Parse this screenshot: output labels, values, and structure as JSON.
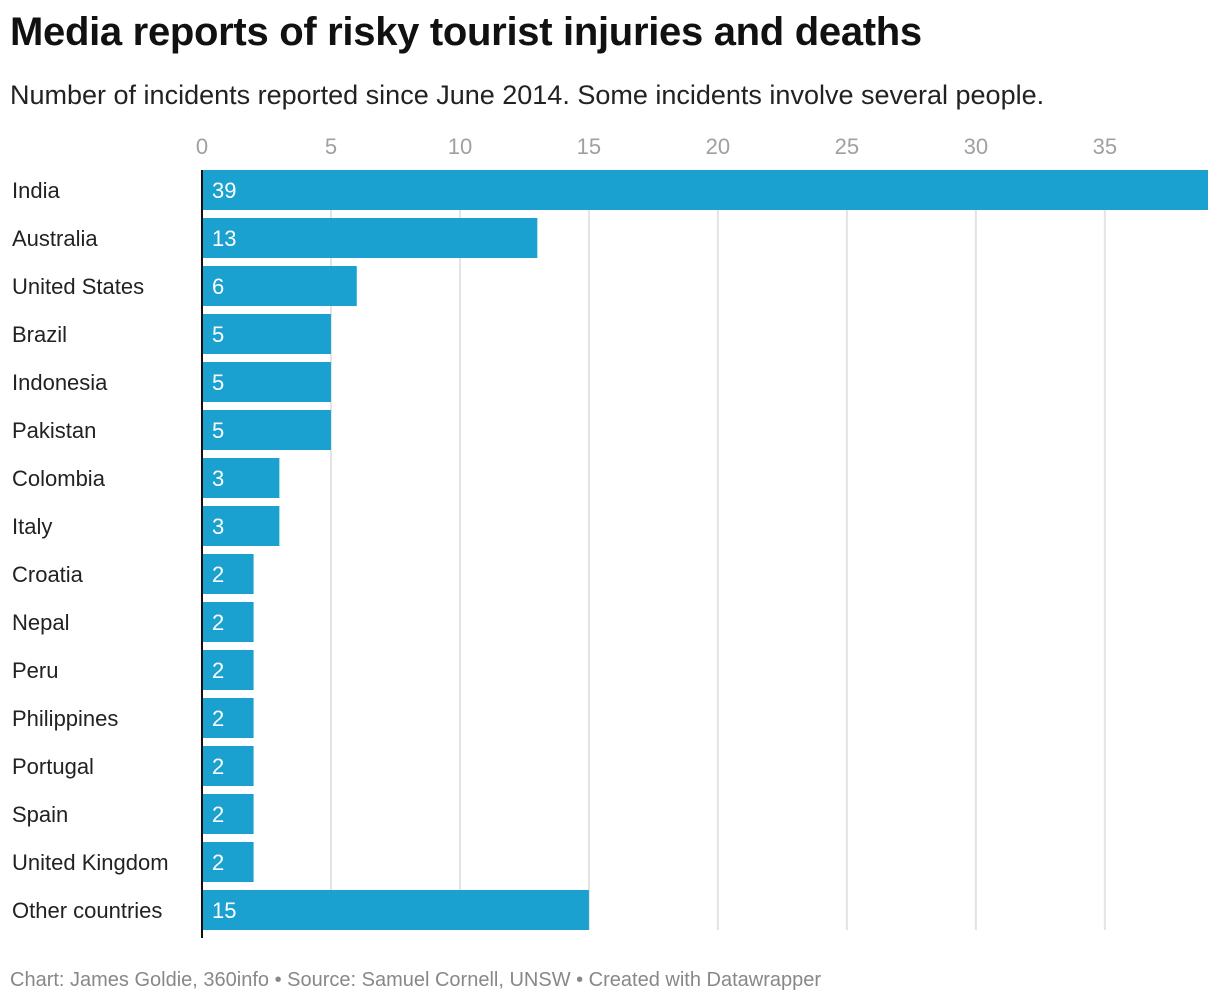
{
  "chart_data": {
    "type": "bar",
    "orientation": "horizontal",
    "title": "Media reports of risky tourist injuries and deaths",
    "subtitle": "Number of incidents reported since June 2014. Some incidents involve several people.",
    "categories": [
      "India",
      "Australia",
      "United States",
      "Brazil",
      "Indonesia",
      "Pakistan",
      "Colombia",
      "Italy",
      "Croatia",
      "Nepal",
      "Peru",
      "Philippines",
      "Portugal",
      "Spain",
      "United Kingdom",
      "Other countries"
    ],
    "values": [
      39,
      13,
      6,
      5,
      5,
      5,
      3,
      3,
      2,
      2,
      2,
      2,
      2,
      2,
      2,
      15
    ],
    "xticks": [
      0,
      5,
      10,
      15,
      20,
      25,
      30,
      35
    ],
    "xlim": [
      0,
      39
    ],
    "grid": true,
    "tick_position": "top",
    "bar_color": "#1aa1cf",
    "footer": "Chart: James Goldie, 360info • Source: Samuel Cornell, UNSW • Created with Datawrapper"
  }
}
